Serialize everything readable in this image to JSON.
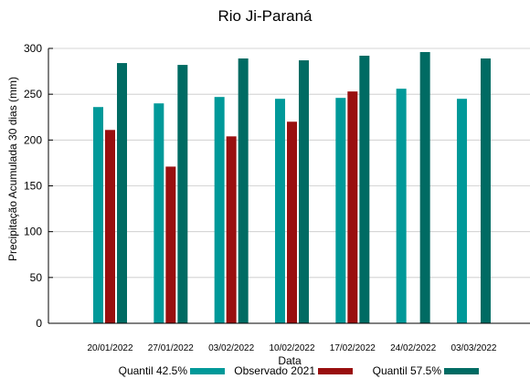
{
  "chart_data": {
    "type": "bar",
    "title": "Rio Ji-Paraná",
    "xlabel": "Data",
    "ylabel": "Precipitação Acumulada 30 dias (mm)",
    "ylim": [
      0,
      300
    ],
    "yticks": [
      "0",
      "50",
      "100",
      "150",
      "200",
      "250",
      "300"
    ],
    "grid": true,
    "legend_position": "bottom",
    "categories": [
      "20/01/2022",
      "27/01/2022",
      "03/02/2022",
      "10/02/2022",
      "17/02/2022",
      "24/02/2022",
      "03/03/2022"
    ],
    "series": [
      {
        "name": "Quantil 42.5%",
        "color": "#009999",
        "values": [
          236,
          240,
          247,
          245,
          246,
          256,
          245
        ]
      },
      {
        "name": "Observado 2021",
        "color": "#990f0f",
        "values": [
          211,
          171,
          204,
          220,
          253,
          null,
          null
        ]
      },
      {
        "name": "Quantil 57.5%",
        "color": "#006b63",
        "values": [
          284,
          282,
          289,
          287,
          292,
          296,
          289
        ]
      }
    ]
  }
}
